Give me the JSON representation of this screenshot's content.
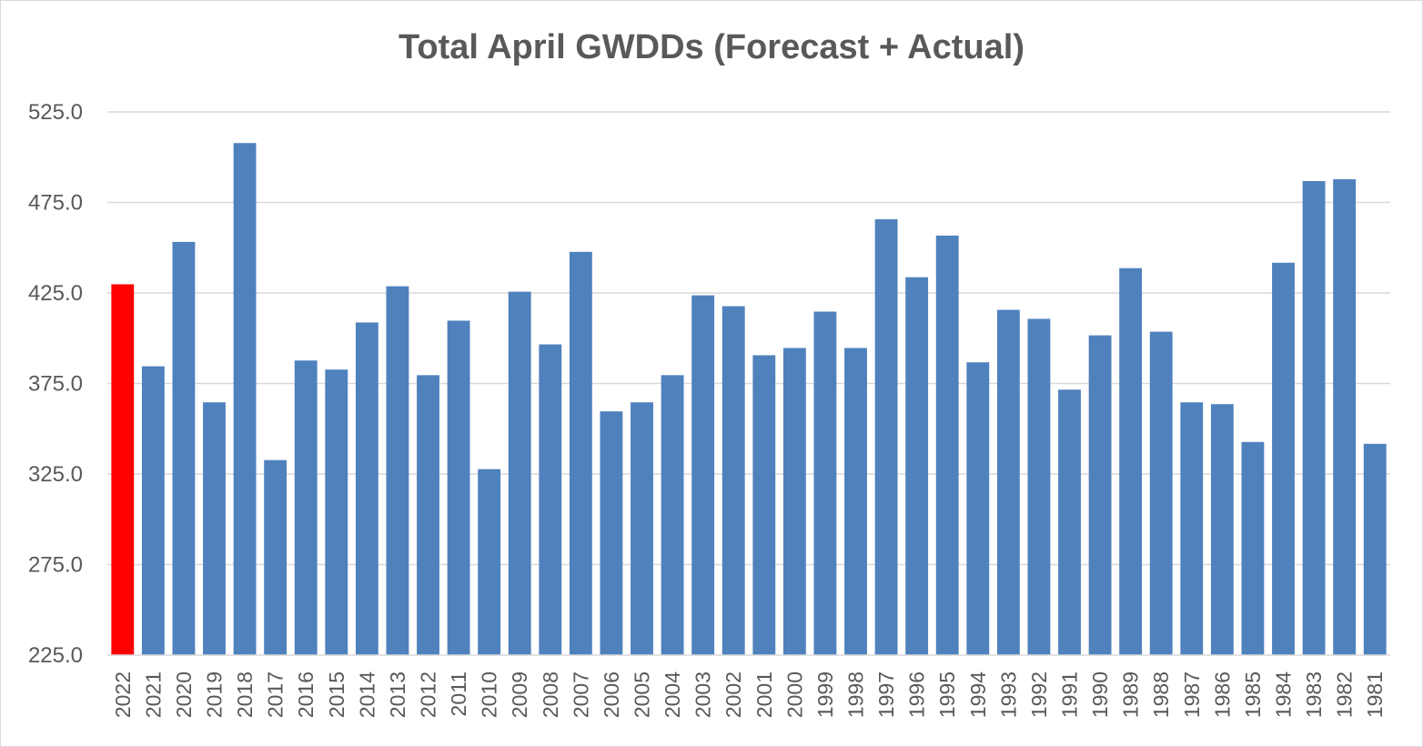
{
  "chart_data": {
    "type": "bar",
    "title": "Total April GWDDs (Forecast + Actual)",
    "xlabel": "",
    "ylabel": "",
    "ylim": [
      225,
      525
    ],
    "yticks": [
      "225.0",
      "275.0",
      "325.0",
      "375.0",
      "425.0",
      "475.0",
      "525.0"
    ],
    "grid": true,
    "legend": "none",
    "colors": {
      "default_bar": "#4f81bd",
      "highlight_bar": "#ff0000",
      "gridline": "#d9d9d9",
      "text": "#595959"
    },
    "highlight_category": "2022",
    "categories": [
      "2022",
      "2021",
      "2020",
      "2019",
      "2018",
      "2017",
      "2016",
      "2015",
      "2014",
      "2013",
      "2012",
      "2011",
      "2010",
      "2009",
      "2008",
      "2007",
      "2006",
      "2005",
      "2004",
      "2003",
      "2002",
      "2001",
      "2000",
      "1999",
      "1998",
      "1997",
      "1996",
      "1995",
      "1994",
      "1993",
      "1992",
      "1991",
      "1990",
      "1989",
      "1988",
      "1987",
      "1986",
      "1985",
      "1984",
      "1983",
      "1982",
      "1981"
    ],
    "values": [
      429.8,
      384.5,
      453.2,
      364.6,
      507.8,
      332.7,
      387.7,
      382.7,
      408.7,
      428.7,
      379.6,
      409.7,
      327.7,
      425.7,
      396.6,
      447.7,
      359.6,
      364.6,
      379.6,
      423.7,
      417.7,
      390.6,
      394.6,
      414.7,
      394.6,
      465.7,
      433.7,
      456.7,
      386.7,
      415.7,
      410.7,
      371.6,
      401.6,
      438.7,
      403.6,
      364.6,
      363.6,
      342.7,
      441.7,
      486.8,
      487.8,
      341.7
    ]
  }
}
